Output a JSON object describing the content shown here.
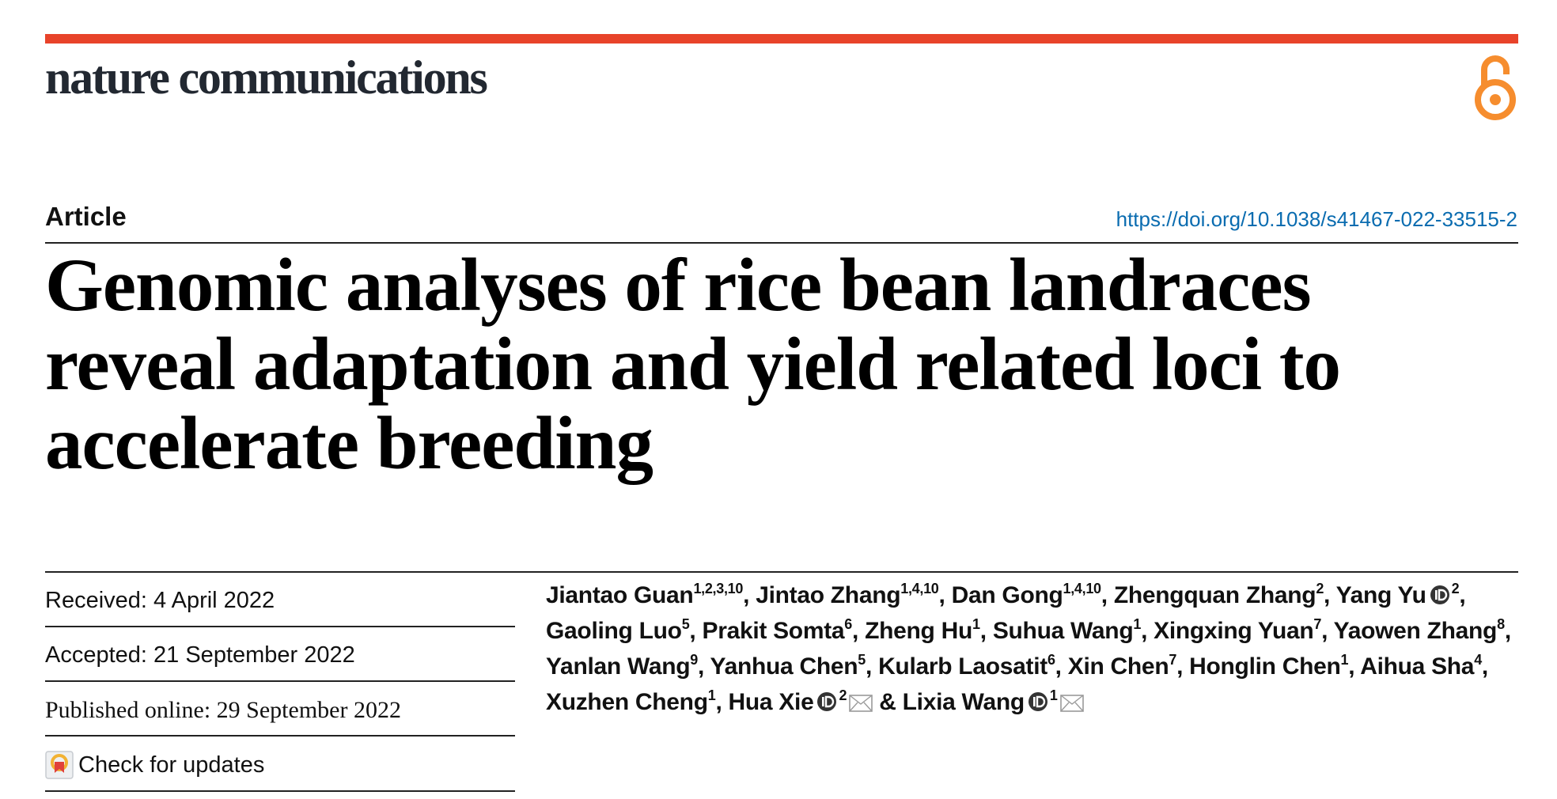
{
  "journal": {
    "name": "nature communications",
    "accent_color": "#e8432a",
    "open_access_icon": "open-access-icon"
  },
  "article": {
    "type": "Article",
    "doi": "https://doi.org/10.1038/s41467-022-33515-2",
    "title_lines": [
      "Genomic analyses of rice bean landraces",
      "reveal adaptation and yield related loci to",
      "accelerate breeding"
    ]
  },
  "dates": {
    "received": "Received: 4 April 2022",
    "accepted": "Accepted: 21 September 2022",
    "published": "Published online: 29 September 2022",
    "check_updates": "Check for updates"
  },
  "authors": [
    {
      "name": "Jiantao Guan",
      "aff": "1,2,3,10"
    },
    {
      "name": "Jintao Zhang",
      "aff": "1,4,10"
    },
    {
      "name": "Dan Gong",
      "aff": "1,4,10"
    },
    {
      "name": "Zhengquan Zhang",
      "aff": "2"
    },
    {
      "name": "Yang Yu",
      "aff": "2",
      "orcid": true
    },
    {
      "name": "Gaoling Luo",
      "aff": "5"
    },
    {
      "name": "Prakit Somta",
      "aff": "6"
    },
    {
      "name": "Zheng Hu",
      "aff": "1"
    },
    {
      "name": "Suhua Wang",
      "aff": "1"
    },
    {
      "name": "Xingxing Yuan",
      "aff": "7"
    },
    {
      "name": "Yaowen Zhang",
      "aff": "8"
    },
    {
      "name": "Yanlan Wang",
      "aff": "9"
    },
    {
      "name": "Yanhua Chen",
      "aff": "5"
    },
    {
      "name": "Kularb Laosatit",
      "aff": "6"
    },
    {
      "name": "Xin Chen",
      "aff": "7"
    },
    {
      "name": "Honglin Chen",
      "aff": "1"
    },
    {
      "name": "Aihua Sha",
      "aff": "4"
    },
    {
      "name": "Xuzhen Cheng",
      "aff": "1"
    },
    {
      "name": "Hua Xie",
      "aff": "2",
      "orcid": true,
      "corresponding": true
    },
    {
      "name": "Lixia Wang",
      "aff": "1",
      "orcid": true,
      "corresponding": true
    }
  ],
  "authors_conjunction": "&",
  "separator": ", "
}
